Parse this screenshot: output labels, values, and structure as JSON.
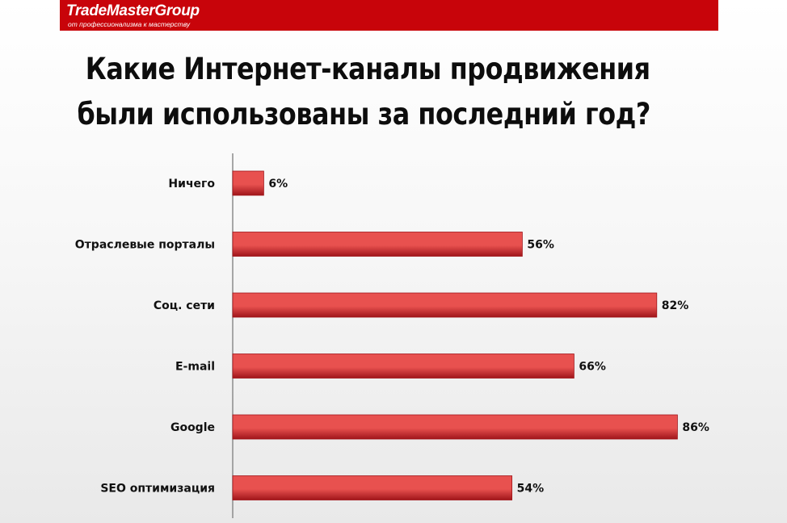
{
  "logo": {
    "name": "TradeMasterGroup",
    "tagline": "от профессионализма к мастерству"
  },
  "colors": {
    "brand_red": "#c8040a",
    "bar_light": "#e8514f",
    "bar_dark": "#a0151a"
  },
  "chart_data": {
    "type": "bar",
    "orientation": "horizontal",
    "title": "Какие Интернет-каналы продвижения были использованы за последний год?",
    "title_lines": [
      "Какие  Интернет-каналы  продвижения",
      "были использованы за последний год?"
    ],
    "categories": [
      "Ничего",
      "Отраслевые порталы",
      "Соц. сети",
      "E-mail",
      "Google",
      "SEO оптимизация"
    ],
    "values": [
      6,
      56,
      82,
      66,
      86,
      54
    ],
    "value_labels": [
      "6%",
      "56%",
      "82%",
      "66%",
      "86%",
      "54%"
    ],
    "unit": "%",
    "xlim": [
      0,
      100
    ],
    "grid": false,
    "legend": "none"
  }
}
